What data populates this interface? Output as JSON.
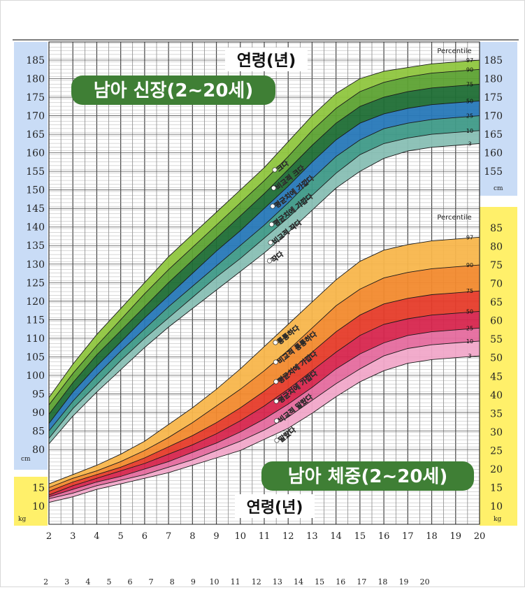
{
  "chart_data": [
    {
      "type": "area",
      "title": "남아 신장(2~20세)",
      "axis_title": "연령(년)",
      "unit": "cm",
      "percentile_header": "Percentile",
      "percentiles": [
        "97",
        "90",
        "75",
        "50",
        "25",
        "10",
        "3"
      ],
      "xlim": [
        2,
        20
      ],
      "ylim": [
        80,
        185
      ],
      "x_ticks": [
        2,
        3,
        4,
        5,
        6,
        7,
        8,
        9,
        10,
        11,
        12,
        13,
        14,
        15,
        16,
        17,
        18,
        19,
        20
      ],
      "y_ticks_left": [
        80,
        85,
        90,
        95,
        100,
        105,
        110,
        115,
        120,
        125,
        130,
        135,
        140,
        145,
        150,
        155,
        160,
        165,
        170,
        175,
        180,
        185
      ],
      "y_ticks_right": [
        155,
        160,
        165,
        170,
        175,
        180,
        185
      ],
      "x": [
        2,
        3,
        4,
        5,
        6,
        7,
        8,
        9,
        10,
        11,
        12,
        13,
        14,
        15,
        16,
        17,
        18,
        19,
        20
      ],
      "series": [
        {
          "name": "97",
          "values": [
            94,
            103,
            111,
            118,
            125,
            132,
            138,
            144,
            150,
            156,
            163,
            170,
            176,
            180,
            182,
            183,
            184,
            184.5,
            185
          ]
        },
        {
          "name": "90",
          "values": [
            92,
            100.5,
            108,
            115,
            122,
            128.5,
            134.5,
            140.5,
            146.5,
            152.5,
            159,
            166,
            172,
            176.5,
            179,
            180.5,
            181.5,
            182,
            182.5
          ]
        },
        {
          "name": "75",
          "values": [
            89.5,
            98,
            105.5,
            112,
            118.5,
            125,
            131,
            137,
            143,
            149,
            155.5,
            162,
            168,
            172.5,
            175,
            176.5,
            177.5,
            178,
            178.5
          ]
        },
        {
          "name": "50",
          "values": [
            87,
            95.5,
            102.5,
            109,
            115.5,
            121.5,
            127.5,
            133.5,
            139,
            145,
            151,
            157.5,
            163.5,
            168,
            170.5,
            172,
            173,
            173.5,
            174
          ]
        },
        {
          "name": "25",
          "values": [
            85,
            93,
            100,
            106.5,
            112.5,
            118.5,
            124,
            129.5,
            135,
            140.5,
            146.5,
            153,
            159,
            163.5,
            166.5,
            168,
            169,
            169.5,
            170
          ]
        },
        {
          "name": "10",
          "values": [
            83,
            91,
            97.5,
            104,
            110,
            115.5,
            121,
            126.5,
            131.5,
            137,
            142.5,
            148.5,
            154.5,
            159.5,
            162.5,
            164,
            165,
            165.5,
            166
          ]
        },
        {
          "name": "3",
          "values": [
            81.5,
            89,
            95.5,
            101.5,
            107.5,
            113,
            118,
            123,
            128,
            133,
            138.5,
            144.5,
            150.5,
            155,
            158.5,
            160.5,
            161.5,
            162,
            162.5
          ]
        }
      ],
      "band_labels": [
        "크다",
        "비교적 크다",
        "평균치에 가깝다",
        "평균치에 가깝다",
        "비교적 작다",
        "작다"
      ]
    },
    {
      "type": "area",
      "title": "남아 체중(2~20세)",
      "axis_title": "연령(년)",
      "unit": "kg",
      "percentile_header": "Percentile",
      "percentiles": [
        "97",
        "90",
        "75",
        "50",
        "25",
        "10",
        "3"
      ],
      "xlim": [
        2,
        20
      ],
      "ylim": [
        10,
        85
      ],
      "x_ticks": [
        2,
        3,
        4,
        5,
        6,
        7,
        8,
        9,
        10,
        11,
        12,
        13,
        14,
        15,
        16,
        17,
        18,
        19,
        20
      ],
      "y_ticks_left": [
        10,
        15
      ],
      "y_ticks_right": [
        10,
        15,
        20,
        25,
        30,
        35,
        40,
        45,
        50,
        55,
        60,
        65,
        70,
        75,
        80,
        85
      ],
      "x": [
        2,
        3,
        4,
        5,
        6,
        7,
        8,
        9,
        10,
        11,
        12,
        13,
        14,
        15,
        16,
        17,
        18,
        19,
        20
      ],
      "series": [
        {
          "name": "97",
          "values": [
            16,
            18.5,
            21,
            24,
            27.5,
            32,
            36.5,
            41.5,
            47,
            53,
            59,
            65,
            71,
            76,
            79,
            80.5,
            81.5,
            82,
            82.5
          ]
        },
        {
          "name": "90",
          "values": [
            15,
            17.5,
            19.5,
            22,
            25,
            28.5,
            32.5,
            37,
            41.5,
            46.5,
            52,
            58,
            64,
            68.5,
            71.5,
            73,
            74,
            74.5,
            75
          ]
        },
        {
          "name": "75",
          "values": [
            14,
            16.5,
            18.5,
            20.5,
            23,
            26,
            29,
            32.5,
            36.5,
            41,
            46,
            51.5,
            57,
            61.5,
            64.5,
            66,
            67,
            67.5,
            68
          ]
        },
        {
          "name": "50",
          "values": [
            13,
            15.5,
            17.5,
            19.5,
            21.5,
            24,
            26.5,
            29.5,
            33,
            37,
            41.5,
            46.5,
            51.5,
            56,
            59,
            60.5,
            61.5,
            62,
            62.5
          ]
        },
        {
          "name": "25",
          "values": [
            12.5,
            14.5,
            16.5,
            18,
            20,
            22,
            24.5,
            27,
            30,
            33.5,
            37.5,
            42,
            47,
            51,
            54,
            56,
            57,
            57.5,
            58
          ]
        },
        {
          "name": "10",
          "values": [
            12,
            13.5,
            15.5,
            17,
            18.5,
            20.5,
            22.5,
            25,
            27.5,
            30.5,
            34,
            38.5,
            43,
            47,
            50.5,
            52.5,
            53.5,
            54,
            54.5
          ]
        },
        {
          "name": "3",
          "values": [
            11,
            12.5,
            14.5,
            16,
            17.5,
            19,
            21,
            23,
            25,
            28,
            31,
            35,
            39.5,
            43.5,
            46.5,
            48.5,
            49.5,
            50,
            50.5
          ]
        }
      ],
      "band_labels": [
        "통통하다",
        "비교적 통통하다",
        "평균치에 가깝다",
        "평균치에 가깝다",
        "비교적 말랐다",
        "말랐다"
      ]
    }
  ],
  "bottom_axis_ticks": [
    2,
    3,
    4,
    5,
    6,
    7,
    8,
    9,
    10,
    11,
    12,
    13,
    14,
    15,
    16,
    17,
    18,
    19,
    20
  ],
  "colors": {
    "height_bands": [
      "#8fc63f",
      "#5da233",
      "#1f6e35",
      "#2778b8",
      "#3f9a88",
      "#88bfb4"
    ],
    "weight_bands": [
      "#f8b64c",
      "#f28a2e",
      "#e63c2a",
      "#d7264e",
      "#e56b9e",
      "#f1a8c9"
    ],
    "height_scale_panel": "#c9dcf6",
    "weight_scale_panel": "#fff06a",
    "title_badge": "#3f7f35"
  }
}
